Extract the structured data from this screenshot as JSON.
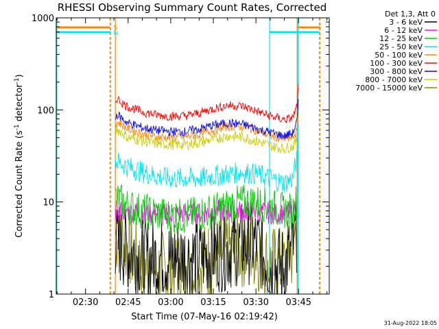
{
  "chart_data": {
    "type": "line",
    "title": "RHESSI Observing Summary Count Rates, Corrected",
    "xlabel": "Start Time (07-May-16 02:19:42)",
    "ylabel": "Corrected Count Rate (s",
    "ylabel_sup": "-1",
    "ylabel_mid": " detector",
    "ylabel_sup2": "-1",
    "ylabel_end": ")",
    "yscale": "log",
    "ylim": [
      1,
      1000
    ],
    "xlim_min": [
      19.7,
      76.5
    ],
    "x_unit_label": "minutes after 02:00",
    "x_ticks": [
      {
        "value": 30,
        "label": "02:30"
      },
      {
        "value": 45,
        "label": "02:45"
      },
      {
        "value": 60,
        "label": "03:00"
      },
      {
        "value": 75,
        "label": "03:15"
      },
      {
        "value": 90,
        "label": "03:30"
      },
      {
        "value": 105,
        "label": "03:45"
      }
    ],
    "x_ticks_minutes": [
      30,
      45,
      60,
      75,
      90,
      105
    ],
    "y_ticks": [
      {
        "value": 1,
        "label": "1"
      },
      {
        "value": 10,
        "label": "10"
      },
      {
        "value": 100,
        "label": "100"
      },
      {
        "value": 1000,
        "label": "1000"
      }
    ],
    "legend_header": "Det 1,3, Att 0",
    "legend_position": "top-right outside",
    "series": [
      {
        "name": "3 - 6 keV",
        "color": "#000000",
        "x": [
          40.5,
          45,
          50,
          55,
          60,
          65,
          70,
          75,
          80,
          85,
          90,
          95,
          100,
          103,
          104.5
        ],
        "values": [
          3.5,
          3.0,
          2.5,
          2.5,
          2.5,
          2.5,
          2.5,
          2.8,
          3.0,
          3.5,
          3.5,
          2.0,
          2.0,
          3.0,
          5.0
        ]
      },
      {
        "name": "6 - 12 keV",
        "color": "#ff00ff",
        "x": [
          40.5,
          45,
          50,
          55,
          60,
          65,
          70,
          75,
          80,
          85,
          90,
          95,
          100,
          103,
          104.5
        ],
        "values": [
          8.0,
          8.0,
          7.5,
          7.5,
          7.5,
          7.5,
          7.5,
          8.0,
          8.0,
          8.0,
          8.0,
          7.5,
          7.5,
          8.0,
          10.0
        ]
      },
      {
        "name": "12 - 25 keV",
        "color": "#00cc00",
        "x": [
          40.5,
          45,
          50,
          55,
          60,
          65,
          70,
          75,
          80,
          85,
          90,
          95,
          100,
          103,
          104.5
        ],
        "values": [
          11.0,
          9.0,
          8.0,
          7.5,
          7.0,
          7.0,
          7.5,
          8.0,
          9.0,
          10.0,
          10.0,
          9.0,
          8.0,
          8.0,
          11.0
        ]
      },
      {
        "name": "25 - 50 keV",
        "color": "#00e5ee",
        "x": [
          40.5,
          45,
          50,
          55,
          60,
          65,
          70,
          75,
          80,
          85,
          90,
          95,
          100,
          103,
          104.5
        ],
        "values": [
          28,
          24,
          21,
          19,
          18,
          18,
          18,
          19,
          20,
          21,
          20,
          18,
          16,
          18,
          30
        ]
      },
      {
        "name": "50 - 100 keV",
        "color": "#ff8800",
        "x": [
          40.5,
          41,
          43,
          45,
          50,
          55,
          60,
          65,
          70,
          75,
          80,
          85,
          88,
          92,
          96,
          100,
          103,
          104.5,
          105
        ],
        "values": [
          65,
          75,
          68,
          62,
          55,
          51,
          50,
          51,
          54,
          60,
          66,
          66,
          63,
          57,
          51,
          48,
          50,
          60,
          95
        ]
      },
      {
        "name": "100 - 300 keV",
        "color": "#ff0000",
        "x": [
          40.5,
          41,
          43,
          45,
          50,
          55,
          60,
          65,
          70,
          75,
          80,
          85,
          88,
          92,
          96,
          100,
          103,
          104.5,
          105
        ],
        "values": [
          120,
          135,
          118,
          108,
          95,
          88,
          85,
          86,
          92,
          103,
          112,
          110,
          103,
          92,
          84,
          78,
          82,
          110,
          175
        ]
      },
      {
        "name": "300 - 800 keV",
        "color": "#0000ff",
        "x": [
          40.5,
          41,
          43,
          45,
          50,
          55,
          60,
          65,
          70,
          75,
          80,
          85,
          88,
          92,
          96,
          100,
          103,
          104.5,
          105
        ],
        "values": [
          78,
          90,
          80,
          72,
          64,
          60,
          58,
          58,
          62,
          68,
          72,
          70,
          66,
          60,
          56,
          52,
          56,
          75,
          120
        ]
      },
      {
        "name": "800 - 7000 keV",
        "color": "#cccc00",
        "x": [
          40.5,
          41,
          43,
          45,
          50,
          55,
          60,
          65,
          70,
          75,
          80,
          85,
          88,
          92,
          96,
          100,
          103,
          104.5
        ],
        "values": [
          55,
          62,
          56,
          50,
          46,
          43,
          42,
          42,
          44,
          48,
          52,
          51,
          48,
          44,
          40,
          38,
          40,
          48
        ]
      },
      {
        "name": "7000 - 15000 keV",
        "color": "#808000",
        "x": [
          40.5,
          45,
          50,
          55,
          60,
          65,
          70,
          75,
          80,
          85,
          90,
          95,
          100,
          103,
          104.5
        ],
        "values": [
          4.5,
          3.0,
          2.0,
          1.8,
          1.8,
          1.8,
          2.0,
          2.5,
          3.0,
          3.2,
          3.0,
          2.0,
          2.0,
          3.0,
          6.0
        ]
      }
    ],
    "annotations": {
      "s_label": "S",
      "n_label": "N",
      "vertical_lines_minutes": [
        {
          "x": 19.9,
          "color": "#00e5ee",
          "style": "solid"
        },
        {
          "x": 38.6,
          "color": "#ff8800",
          "style": "dashed"
        },
        {
          "x": 38.9,
          "color": "#00e5ee",
          "style": "dashed"
        },
        {
          "x": 40.5,
          "color": "#ff8800",
          "style": "solid"
        },
        {
          "x": 94.8,
          "color": "#00e5ee",
          "style": "solid"
        },
        {
          "x": 104.5,
          "color": "#ff8800",
          "style": "solid"
        },
        {
          "x": 104.8,
          "color": "#00e5ee",
          "style": "solid"
        },
        {
          "x": 112.3,
          "color": "#00e5ee",
          "style": "dashed"
        },
        {
          "x": 112.6,
          "color": "#ff8800",
          "style": "dashed"
        }
      ],
      "s_bars_minutes": [
        [
          19.9,
          38.6
        ],
        [
          104.5,
          112.6
        ]
      ],
      "n_bars_minutes": [
        [
          19.9,
          38.9
        ],
        [
          94.8,
          112.3
        ]
      ]
    },
    "footer": "31-Aug-2022 18:05"
  }
}
